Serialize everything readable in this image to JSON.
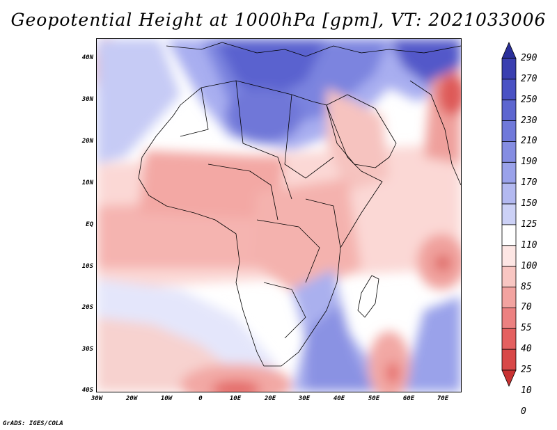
{
  "title": "Geopotential Height at 1000hPa [gpm], VT: 2021033006",
  "footer": "GrADS: IGES/COLA",
  "axes": {
    "lat_labels": [
      "40N",
      "30N",
      "20N",
      "10N",
      "EQ",
      "10S",
      "20S",
      "30S",
      "40S"
    ],
    "lon_labels": [
      "30W",
      "20W",
      "10W",
      "0",
      "10E",
      "20E",
      "30E",
      "40E",
      "50E",
      "60E",
      "70E"
    ]
  },
  "colorbar": {
    "levels": [
      "290",
      "270",
      "250",
      "230",
      "210",
      "190",
      "170",
      "150",
      "125",
      "110",
      "100",
      "85",
      "70",
      "55",
      "40",
      "25",
      "10",
      "0"
    ],
    "colors": [
      "#2a2f9a",
      "#3a3fb0",
      "#4a52c4",
      "#5d66d0",
      "#7079da",
      "#858de2",
      "#9aa2ea",
      "#b3b9f0",
      "#ccd1f6",
      "#ffffff",
      "#fde6e4",
      "#f8c6c2",
      "#f2a3a0",
      "#ec8181",
      "#e46060",
      "#d84848",
      "#c83232"
    ]
  },
  "map": {
    "type": "filled-contour",
    "variable": "Geopotential Height at 1000hPa",
    "units": "gpm",
    "valid_time": "2021033006",
    "region": "Africa and surrounding oceans",
    "lon_range": [
      -30,
      75
    ],
    "lat_range": [
      -40,
      45
    ]
  }
}
